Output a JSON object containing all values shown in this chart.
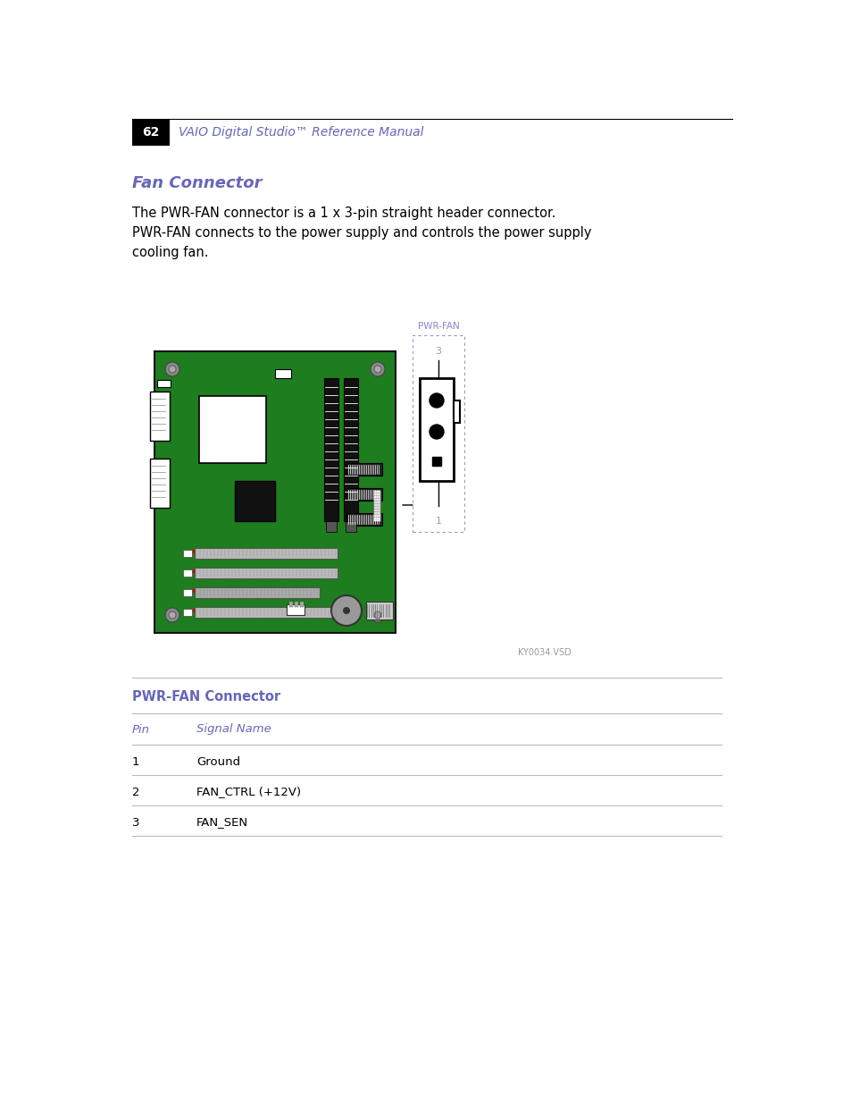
{
  "page_bg": "#ffffff",
  "header_bar_color": "#000000",
  "header_number": "62",
  "header_number_color": "#ffffff",
  "header_title": "VAIO Digital Studio™ Reference Manual",
  "header_title_color": "#6666bb",
  "section_title": "Fan Connector",
  "section_title_color": "#6666bb",
  "body_text_line1": "The PWR-FAN connector is a 1 x 3-pin straight header connector.",
  "body_text_line2": "PWR-FAN connects to the power supply and controls the power supply",
  "body_text_line3": "cooling fan.",
  "body_text_color": "#000000",
  "connector_label": "PWR-FAN",
  "connector_label_color": "#8888cc",
  "connector_pin_top": "3",
  "connector_pin_bot": "1",
  "diagram_border_color": "#9999bb",
  "watermark_text": "KY0034.VSD",
  "watermark_color": "#999999",
  "table_header_text": "PWR-FAN Connector",
  "table_header_color": "#6666bb",
  "table_col1_header": "Pin",
  "table_col2_header": "Signal Name",
  "table_col_header_color": "#6666bb",
  "table_rows": [
    [
      "1",
      "Ground"
    ],
    [
      "2",
      "FAN_CTRL (+12V)"
    ],
    [
      "3",
      "FAN_SEN"
    ]
  ],
  "table_text_color": "#000000",
  "table_line_color": "#bbbbbb",
  "board_green": "#1e7d1e",
  "board_border": "#111111",
  "screw_color": "#aaaaaa",
  "slot_dark": "#222222",
  "slot_light": "#cccccc",
  "slot_border": "#444444"
}
